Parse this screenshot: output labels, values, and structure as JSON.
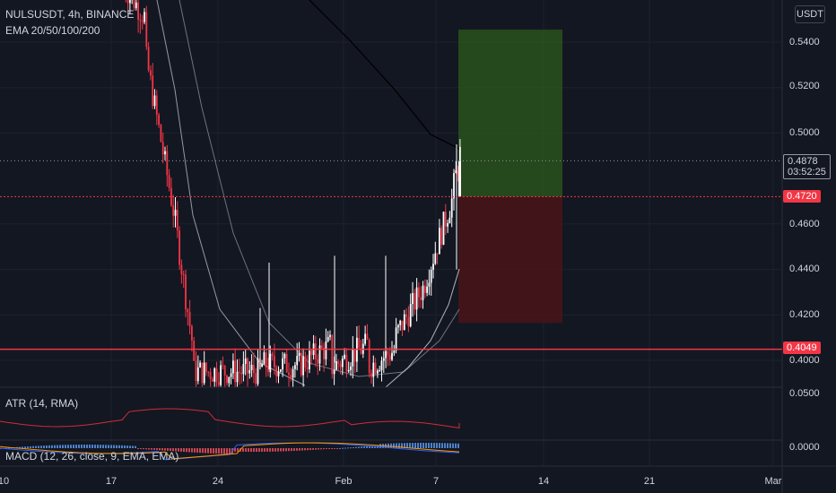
{
  "header": {
    "title": "NULSUSDT, 4h, BINANCE",
    "indicator": "EMA 20/50/100/200",
    "scale_button": "USDT"
  },
  "price_axis": {
    "ticks": [
      "0.5400",
      "0.5200",
      "0.5000",
      "0.4600",
      "0.4400",
      "0.4200",
      "0.4000"
    ],
    "tick_values": [
      0.54,
      0.52,
      0.5,
      0.46,
      0.44,
      0.42,
      0.4
    ],
    "current_price": "0.4878",
    "countdown": "03:52:25",
    "level_entry": "0.4720",
    "level_support": "0.4049"
  },
  "time_axis": [
    "10",
    "17",
    "24",
    "Feb",
    "7",
    "14",
    "21",
    "Mar"
  ],
  "atr_panel": {
    "label": "ATR (14, RMA)",
    "tick": "0.0500"
  },
  "macd_panel": {
    "label": "MACD (12, 26, close, 9, EMA, EMA)",
    "tick": "0.0000"
  },
  "position": {
    "entry": 0.472,
    "target": 0.5455,
    "stop": 0.4165
  },
  "colors": {
    "background": "#131722",
    "bull": "#ffffff",
    "bear": "#f23645",
    "level": "#f23645",
    "profit": "#2e5a1c",
    "loss": "#4a1419"
  },
  "chart_data": {
    "type": "candlestick",
    "symbol": "NULSUSDT",
    "interval": "4h",
    "ylim": [
      0.3975,
      0.558
    ],
    "horizontal_levels": [
      0.472,
      0.4049
    ],
    "last_price": 0.4878
  }
}
